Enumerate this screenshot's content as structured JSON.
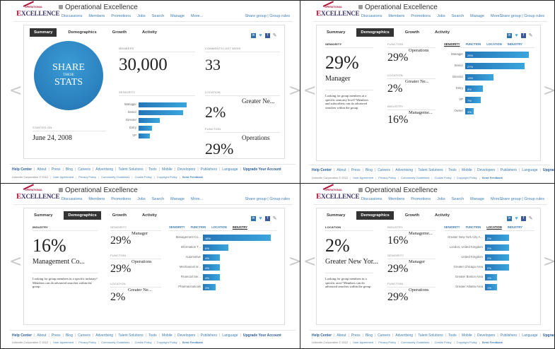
{
  "group": {
    "title": "Operational Excellence",
    "logo_text_top": "OPERATIONAL",
    "logo_text_main": "XCELLENCE",
    "logo_letter": "E",
    "nav": [
      "Discussions",
      "Members",
      "Promotions",
      "Jobs",
      "Search",
      "Manage",
      "More..."
    ],
    "share_links": "Share group | Group rules"
  },
  "tabs": [
    "Summary",
    "Demographics",
    "Growth",
    "Activity"
  ],
  "social_icons": [
    "linkedin-icon",
    "twitter-icon",
    "facebook-icon",
    "pencil-icon"
  ],
  "arrows": {
    "prev": "<",
    "next": ">"
  },
  "subtabs": [
    "SENIORITY",
    "FUNCTION",
    "LOCATION",
    "INDUSTRY"
  ],
  "panels": [
    {
      "active_tab": "Summary",
      "share_circle": {
        "line1": "SHARE",
        "line2": "THESE",
        "line3": "STATS"
      },
      "members": {
        "label": "MEMBERS",
        "value": "30,000"
      },
      "comments": {
        "label": "COMMENTS LAST WEEK",
        "value": "33"
      },
      "started": {
        "label": "STARTED ON",
        "value": "June 24, 2008"
      },
      "seniority": {
        "label": "SENIORITY",
        "bars": [
          {
            "name": "Manager",
            "value": 29
          },
          {
            "name": "Senior",
            "value": 27
          },
          {
            "name": "Director",
            "value": 13
          },
          {
            "name": "Entry",
            "value": 8
          },
          {
            "name": "VP",
            "value": 7
          }
        ]
      },
      "location": {
        "label": "LOCATION",
        "value": "2%",
        "name": "Greater Ne..."
      },
      "function": {
        "label": "FUNCTION",
        "value": "29%",
        "name": "Operations"
      }
    },
    {
      "active_tab": "Demographics",
      "active_subtab": "SENIORITY",
      "main": {
        "label": "SENIORITY",
        "value": "29%",
        "name": "Manager",
        "blurb": "Looking for group members at a specific seniority level? Members and subscribers can do advanced searches within the group."
      },
      "side": [
        {
          "label": "FUNCTION",
          "value": "29%",
          "name": "Operations"
        },
        {
          "label": "LOCATION",
          "value": "2%",
          "name": "Greater Ne..."
        },
        {
          "label": "INDUSTRY",
          "value": "16%",
          "name": "Manageme..."
        }
      ],
      "bars": [
        {
          "name": "Manager",
          "value": 29,
          "text": "29%"
        },
        {
          "name": "Senior",
          "value": 27,
          "text": "27%"
        },
        {
          "name": "Director",
          "value": 13,
          "text": "13%"
        },
        {
          "name": "Entry",
          "value": 8,
          "text": "8%"
        },
        {
          "name": "VP",
          "value": 7,
          "text": "7%"
        },
        {
          "name": "Owner",
          "value": 4,
          "text": "4%"
        }
      ]
    },
    {
      "active_tab": "Demographics",
      "active_subtab": "INDUSTRY",
      "main": {
        "label": "INDUSTRY",
        "value": "16%",
        "name": "Management Co...",
        "blurb": "Looking for group members in a specific industry? Members can do advanced searches within the group."
      },
      "side": [
        {
          "label": "SENIORITY",
          "value": "29%",
          "name": "Manager"
        },
        {
          "label": "FUNCTION",
          "value": "29%",
          "name": "Operations"
        },
        {
          "label": "LOCATION",
          "value": "2%",
          "name": "Greater Ne..."
        }
      ],
      "bars": [
        {
          "name": "Management Co...",
          "value": 16,
          "text": "16%"
        },
        {
          "name": "Information T...",
          "value": 6,
          "text": "6%"
        },
        {
          "name": "Automotive",
          "value": 4,
          "text": "4%"
        },
        {
          "name": "Mechanical or...",
          "value": 4,
          "text": "4%"
        },
        {
          "name": "Financial Ser...",
          "value": 4,
          "text": "4%"
        },
        {
          "name": "Pharmaceuticals",
          "value": 3,
          "text": "3%"
        }
      ]
    },
    {
      "active_tab": "Demographics",
      "active_subtab": "LOCATION",
      "main": {
        "label": "LOCATION",
        "value": "2%",
        "name": "Greater New Yor...",
        "blurb": "Looking for group members in a specific area? Members can do advanced searches within the group."
      },
      "side": [
        {
          "label": "INDUSTRY",
          "value": "16%",
          "name": "Manageme..."
        },
        {
          "label": "SENIORITY",
          "value": "29%",
          "name": "Manager"
        },
        {
          "label": "FUNCTION",
          "value": "29%",
          "name": "Operations"
        }
      ],
      "bars": [
        {
          "name": "Greater New York City A...",
          "value": 2,
          "text": "2%"
        },
        {
          "name": "London, United Kingdom",
          "value": 2,
          "text": "2%"
        },
        {
          "name": "United Kingdom",
          "value": 2,
          "text": "2%"
        },
        {
          "name": "Greater Chicago Area",
          "value": 2,
          "text": "2%"
        },
        {
          "name": "Greater Boston Area",
          "value": 1,
          "text": "1%"
        },
        {
          "name": "Greater Atlanta Area",
          "value": 1,
          "text": "1%"
        }
      ]
    }
  ],
  "footer": {
    "links": [
      "Help Center",
      "About",
      "Press",
      "Blog",
      "Careers",
      "Advertising",
      "Talent Solutions",
      "Tools",
      "Mobile",
      "Developers",
      "Publishers",
      "Language",
      "Upgrade Your Account"
    ],
    "copyright": "LinkedIn Corporation © 2012",
    "legal": [
      "User Agreement",
      "Privacy Policy",
      "Community Guidelines",
      "Cookie Policy",
      "Copyright Policy",
      "Send Feedback"
    ]
  },
  "colors": {
    "accent": "#2a7fbd",
    "link": "#3c7cb4",
    "active_tab": "#333333"
  }
}
